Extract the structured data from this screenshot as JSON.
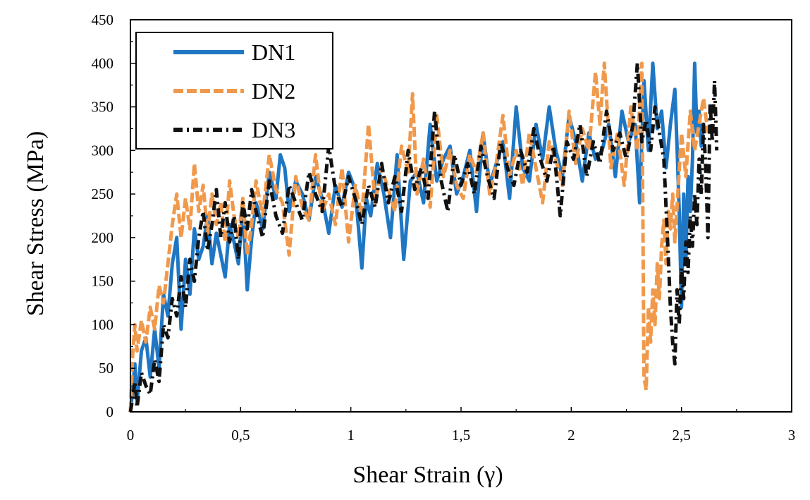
{
  "chart_data": {
    "type": "line",
    "title": "",
    "xlabel": "Shear Strain (γ)",
    "ylabel": "Shear Stress (MPa)",
    "xlim": [
      0,
      3
    ],
    "ylim": [
      0,
      450
    ],
    "x_ticks": [
      0,
      0.5,
      1,
      1.5,
      2,
      2.5,
      3
    ],
    "x_tick_labels": [
      "0",
      "0,5",
      "1",
      "1,5",
      "2",
      "2,5",
      "3"
    ],
    "y_ticks": [
      0,
      50,
      100,
      150,
      200,
      250,
      300,
      350,
      400,
      450
    ],
    "y_tick_labels": [
      "0",
      "50",
      "100",
      "150",
      "200",
      "250",
      "300",
      "350",
      "400",
      "450"
    ],
    "grid": false,
    "legend_position": "top-left",
    "series": [
      {
        "name": "DN1",
        "color": "#1f77c4",
        "line_style": "solid",
        "x": [
          0,
          0.01,
          0.02,
          0.03,
          0.05,
          0.07,
          0.09,
          0.11,
          0.13,
          0.15,
          0.17,
          0.19,
          0.21,
          0.23,
          0.25,
          0.27,
          0.29,
          0.31,
          0.33,
          0.35,
          0.37,
          0.39,
          0.41,
          0.43,
          0.45,
          0.47,
          0.49,
          0.51,
          0.53,
          0.55,
          0.57,
          0.6,
          0.63,
          0.66,
          0.68,
          0.7,
          0.72,
          0.75,
          0.78,
          0.81,
          0.84,
          0.87,
          0.9,
          0.93,
          0.96,
          0.99,
          1.02,
          1.05,
          1.07,
          1.09,
          1.12,
          1.15,
          1.18,
          1.21,
          1.24,
          1.27,
          1.3,
          1.33,
          1.36,
          1.39,
          1.42,
          1.45,
          1.48,
          1.51,
          1.54,
          1.57,
          1.6,
          1.63,
          1.66,
          1.69,
          1.72,
          1.75,
          1.78,
          1.81,
          1.84,
          1.87,
          1.9,
          1.93,
          1.96,
          1.99,
          2.02,
          2.05,
          2.08,
          2.11,
          2.14,
          2.17,
          2.2,
          2.23,
          2.26,
          2.29,
          2.31,
          2.33,
          2.35,
          2.37,
          2.39,
          2.41,
          2.43,
          2.45,
          2.47,
          2.48,
          2.49,
          2.5,
          2.51,
          2.52,
          2.53,
          2.54,
          2.55,
          2.56,
          2.57,
          2.58,
          2.59,
          2.6
        ],
        "y": [
          0,
          25,
          55,
          10,
          70,
          85,
          40,
          95,
          50,
          135,
          110,
          170,
          200,
          95,
          175,
          135,
          210,
          175,
          190,
          225,
          170,
          205,
          180,
          155,
          215,
          195,
          170,
          235,
          140,
          200,
          240,
          210,
          275,
          245,
          295,
          280,
          230,
          265,
          250,
          220,
          270,
          245,
          205,
          260,
          235,
          275,
          255,
          165,
          245,
          225,
          285,
          250,
          200,
          295,
          175,
          265,
          275,
          240,
          330,
          265,
          290,
          305,
          250,
          270,
          300,
          230,
          320,
          260,
          285,
          310,
          245,
          350,
          280,
          265,
          330,
          290,
          350,
          300,
          270,
          340,
          310,
          265,
          320,
          290,
          300,
          330,
          270,
          345,
          310,
          330,
          240,
          380,
          300,
          400,
          325,
          345,
          280,
          330,
          370,
          305,
          230,
          120,
          250,
          175,
          270,
          230,
          290,
          400,
          320,
          345,
          305,
          330
        ]
      },
      {
        "name": "DN2",
        "color": "#f0994c",
        "line_style": "dashed",
        "x": [
          0,
          0.01,
          0.02,
          0.03,
          0.05,
          0.07,
          0.09,
          0.11,
          0.13,
          0.15,
          0.17,
          0.19,
          0.21,
          0.23,
          0.25,
          0.27,
          0.29,
          0.31,
          0.33,
          0.35,
          0.37,
          0.39,
          0.41,
          0.43,
          0.45,
          0.47,
          0.49,
          0.51,
          0.53,
          0.55,
          0.57,
          0.6,
          0.63,
          0.66,
          0.69,
          0.72,
          0.75,
          0.78,
          0.81,
          0.84,
          0.87,
          0.9,
          0.93,
          0.96,
          0.99,
          1.02,
          1.05,
          1.08,
          1.11,
          1.14,
          1.17,
          1.2,
          1.23,
          1.26,
          1.28,
          1.3,
          1.33,
          1.36,
          1.39,
          1.42,
          1.45,
          1.48,
          1.51,
          1.54,
          1.57,
          1.6,
          1.63,
          1.66,
          1.69,
          1.72,
          1.75,
          1.78,
          1.81,
          1.84,
          1.87,
          1.9,
          1.93,
          1.96,
          1.99,
          2.02,
          2.05,
          2.08,
          2.11,
          2.13,
          2.15,
          2.18,
          2.21,
          2.24,
          2.27,
          2.3,
          2.32,
          2.33,
          2.34,
          2.35,
          2.36,
          2.37,
          2.38,
          2.39,
          2.4,
          2.41,
          2.42,
          2.43,
          2.44,
          2.45,
          2.46,
          2.47,
          2.48,
          2.5,
          2.52,
          2.54,
          2.56,
          2.58,
          2.6,
          2.62
        ],
        "y": [
          0,
          65,
          100,
          70,
          105,
          80,
          120,
          95,
          145,
          125,
          170,
          215,
          250,
          200,
          245,
          210,
          285,
          230,
          260,
          205,
          250,
          215,
          240,
          195,
          265,
          225,
          200,
          245,
          180,
          215,
          265,
          225,
          295,
          255,
          240,
          180,
          270,
          235,
          220,
          295,
          230,
          250,
          215,
          280,
          195,
          260,
          225,
          330,
          240,
          280,
          255,
          230,
          305,
          275,
          365,
          250,
          290,
          235,
          340,
          270,
          300,
          260,
          245,
          295,
          275,
          320,
          250,
          285,
          340,
          270,
          300,
          260,
          320,
          280,
          240,
          310,
          290,
          260,
          345,
          285,
          325,
          300,
          390,
          330,
          400,
          280,
          320,
          260,
          350,
          300,
          400,
          40,
          25,
          120,
          80,
          140,
          100,
          170,
          130,
          190,
          220,
          170,
          230,
          210,
          250,
          195,
          235,
          320,
          270,
          345,
          300,
          330,
          360,
          320
        ]
      },
      {
        "name": "DN3",
        "color": "#111111",
        "line_style": "dash-dot",
        "x": [
          0,
          0.01,
          0.02,
          0.03,
          0.05,
          0.07,
          0.09,
          0.11,
          0.13,
          0.15,
          0.17,
          0.19,
          0.21,
          0.23,
          0.25,
          0.27,
          0.29,
          0.31,
          0.33,
          0.35,
          0.37,
          0.39,
          0.41,
          0.43,
          0.45,
          0.47,
          0.49,
          0.51,
          0.53,
          0.55,
          0.57,
          0.6,
          0.63,
          0.66,
          0.69,
          0.72,
          0.75,
          0.78,
          0.81,
          0.84,
          0.87,
          0.9,
          0.93,
          0.96,
          0.99,
          1.02,
          1.05,
          1.08,
          1.11,
          1.14,
          1.17,
          1.2,
          1.23,
          1.26,
          1.29,
          1.32,
          1.35,
          1.38,
          1.41,
          1.44,
          1.47,
          1.5,
          1.53,
          1.56,
          1.59,
          1.62,
          1.65,
          1.68,
          1.71,
          1.74,
          1.77,
          1.8,
          1.83,
          1.86,
          1.89,
          1.92,
          1.95,
          1.98,
          2.01,
          2.04,
          2.07,
          2.1,
          2.13,
          2.16,
          2.19,
          2.22,
          2.25,
          2.28,
          2.3,
          2.32,
          2.34,
          2.36,
          2.38,
          2.4,
          2.42,
          2.44,
          2.45,
          2.46,
          2.47,
          2.48,
          2.49,
          2.5,
          2.51,
          2.52,
          2.53,
          2.54,
          2.55,
          2.56,
          2.57,
          2.58,
          2.59,
          2.6,
          2.61,
          2.62,
          2.63,
          2.64,
          2.65,
          2.66
        ],
        "y": [
          0,
          15,
          35,
          5,
          45,
          30,
          20,
          60,
          35,
          100,
          85,
          130,
          110,
          155,
          120,
          175,
          150,
          200,
          230,
          185,
          215,
          255,
          200,
          240,
          195,
          225,
          175,
          240,
          210,
          255,
          230,
          200,
          265,
          225,
          205,
          260,
          240,
          220,
          275,
          250,
          230,
          305,
          255,
          235,
          270,
          245,
          215,
          260,
          235,
          285,
          240,
          270,
          230,
          300,
          255,
          280,
          245,
          345,
          265,
          230,
          295,
          260,
          285,
          250,
          305,
          270,
          245,
          310,
          280,
          260,
          300,
          275,
          325,
          290,
          265,
          305,
          225,
          310,
          290,
          330,
          270,
          310,
          285,
          345,
          300,
          320,
          290,
          330,
          400,
          310,
          335,
          300,
          350,
          320,
          290,
          180,
          120,
          80,
          55,
          140,
          100,
          165,
          130,
          195,
          160,
          225,
          190,
          250,
          215,
          290,
          250,
          330,
          280,
          200,
          355,
          310,
          380,
          300
        ]
      }
    ]
  }
}
